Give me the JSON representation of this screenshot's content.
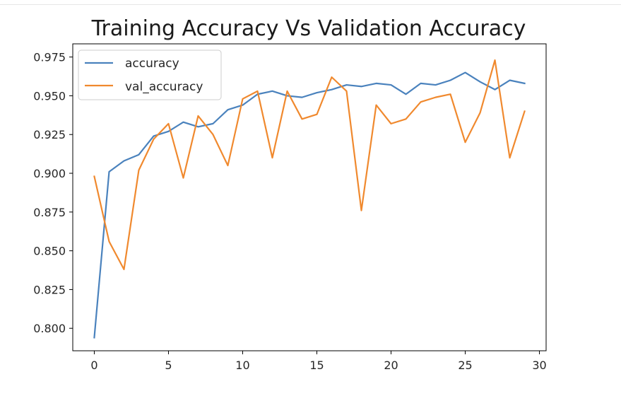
{
  "chart_data": {
    "type": "line",
    "title": "Training Accuracy Vs Validation Accuracy",
    "xlabel": "",
    "ylabel": "",
    "xlim": [
      -1.45,
      30.45
    ],
    "ylim": [
      0.7855,
      0.9835
    ],
    "xticks": [
      0,
      5,
      10,
      15,
      20,
      25,
      30
    ],
    "xtick_labels": [
      "0",
      "5",
      "10",
      "15",
      "20",
      "25",
      "30"
    ],
    "yticks": [
      0.8,
      0.825,
      0.85,
      0.875,
      0.9,
      0.925,
      0.95,
      0.975
    ],
    "ytick_labels": [
      "0.800",
      "0.825",
      "0.850",
      "0.875",
      "0.900",
      "0.925",
      "0.950",
      "0.975"
    ],
    "grid": false,
    "legend_position": "upper-left",
    "x": [
      0,
      1,
      2,
      3,
      4,
      5,
      6,
      7,
      8,
      9,
      10,
      11,
      12,
      13,
      14,
      15,
      16,
      17,
      18,
      19,
      20,
      21,
      22,
      23,
      24,
      25,
      26,
      27,
      28,
      29
    ],
    "series": [
      {
        "name": "accuracy",
        "color": "#4a82bd",
        "values": [
          0.794,
          0.901,
          0.908,
          0.912,
          0.924,
          0.927,
          0.933,
          0.93,
          0.932,
          0.941,
          0.944,
          0.951,
          0.953,
          0.95,
          0.949,
          0.952,
          0.954,
          0.957,
          0.956,
          0.958,
          0.957,
          0.951,
          0.958,
          0.957,
          0.96,
          0.965,
          0.959,
          0.954,
          0.96,
          0.958
        ]
      },
      {
        "name": "val_accuracy",
        "color": "#f0892e",
        "values": [
          0.898,
          0.856,
          0.838,
          0.902,
          0.922,
          0.932,
          0.897,
          0.937,
          0.925,
          0.905,
          0.948,
          0.953,
          0.91,
          0.953,
          0.935,
          0.938,
          0.962,
          0.953,
          0.876,
          0.944,
          0.932,
          0.935,
          0.946,
          0.949,
          0.951,
          0.92,
          0.939,
          0.973,
          0.91,
          0.94
        ]
      }
    ]
  }
}
